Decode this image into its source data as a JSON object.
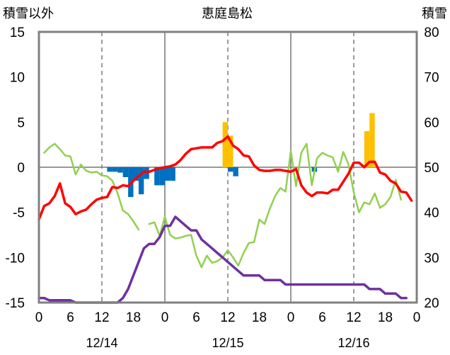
{
  "chart_data": {
    "type": "line",
    "title": "恵庭島松",
    "left_axis_label": "積雪以外",
    "right_axis_label": "積雪",
    "left_ylim": [
      -15,
      15
    ],
    "left_ticks": [
      "15",
      "10",
      "5",
      "0",
      "-5",
      "-10",
      "-15"
    ],
    "right_ylim": [
      20,
      80
    ],
    "right_ticks": [
      "80",
      "70",
      "60",
      "50",
      "40",
      "30",
      "20"
    ],
    "x_range_hours": [
      0,
      72
    ],
    "x_tick_labels": [
      "0",
      "6",
      "12",
      "18",
      "0",
      "6",
      "12",
      "18",
      "0",
      "6",
      "12",
      "18",
      "0"
    ],
    "date_labels": [
      "12/14",
      "12/15",
      "12/16"
    ],
    "grid": "dashed vertical every 12h, solid vertical at day boundaries, zero line",
    "colors": {
      "temperature": "#ff0000",
      "dew_point": "#92d050",
      "snow_depth": "#7030a0",
      "snowfall": "#ffc000",
      "snow_decrease": "#0070c0"
    },
    "series": [
      {
        "axis": "left",
        "style": "line",
        "color_key": "temperature",
        "points": [
          [
            0,
            -5.8
          ],
          [
            1,
            -4.3
          ],
          [
            2,
            -4.0
          ],
          [
            3,
            -3.2
          ],
          [
            4,
            -1.8
          ],
          [
            5,
            -4.0
          ],
          [
            6,
            -4.4
          ],
          [
            7,
            -5.2
          ],
          [
            8,
            -4.9
          ],
          [
            9,
            -4.7
          ],
          [
            10,
            -4.1
          ],
          [
            11,
            -3.6
          ],
          [
            12,
            -3.4
          ],
          [
            13,
            -3.3
          ],
          [
            14,
            -2.2
          ],
          [
            15,
            -2.3
          ],
          [
            16,
            -2.0
          ],
          [
            17,
            -2.1
          ],
          [
            18,
            -1.5
          ],
          [
            19,
            -1.0
          ],
          [
            20,
            -0.5
          ],
          [
            21,
            -0.5
          ],
          [
            22,
            -0.3
          ],
          [
            23,
            -0.1
          ],
          [
            24,
            0.0
          ],
          [
            25,
            0.1
          ],
          [
            26,
            0.3
          ],
          [
            27,
            0.8
          ],
          [
            28,
            1.5
          ],
          [
            29,
            2.0
          ],
          [
            30,
            2.1
          ],
          [
            31,
            2.2
          ],
          [
            32,
            2.2
          ],
          [
            33,
            2.2
          ],
          [
            34,
            2.7
          ],
          [
            35,
            2.9
          ],
          [
            36,
            3.4
          ],
          [
            37,
            2.4
          ],
          [
            38,
            2.0
          ],
          [
            39,
            1.3
          ],
          [
            40,
            1.2
          ],
          [
            41,
            0.2
          ],
          [
            42,
            -0.3
          ],
          [
            43,
            -0.4
          ],
          [
            44,
            -0.4
          ],
          [
            45,
            -0.3
          ],
          [
            46,
            -0.3
          ],
          [
            47,
            -0.4
          ],
          [
            48,
            -0.5
          ],
          [
            49,
            -0.2
          ],
          [
            50,
            -2.0
          ],
          [
            51,
            -2.8
          ],
          [
            52,
            -3.2
          ],
          [
            53,
            -2.8
          ],
          [
            54,
            -2.8
          ],
          [
            55,
            -2.9
          ],
          [
            56,
            -2.5
          ],
          [
            57,
            -2.5
          ],
          [
            58,
            -1.6
          ],
          [
            59,
            -0.7
          ],
          [
            60,
            0.5
          ],
          [
            61,
            0.5
          ],
          [
            62,
            0.0
          ],
          [
            63,
            0.6
          ],
          [
            64,
            0.6
          ],
          [
            65,
            -0.6
          ],
          [
            66,
            -0.8
          ],
          [
            67,
            -1.5
          ],
          [
            68,
            -1.8
          ],
          [
            69,
            -2.7
          ],
          [
            70,
            -2.8
          ],
          [
            71,
            -3.7
          ]
        ]
      },
      {
        "axis": "left",
        "style": "line",
        "color_key": "dew_point",
        "points": [
          [
            1,
            1.6
          ],
          [
            2,
            2.2
          ],
          [
            3,
            2.6
          ],
          [
            4,
            2.0
          ],
          [
            5,
            1.3
          ],
          [
            6,
            1.2
          ],
          [
            7,
            -0.8
          ],
          [
            8,
            0.3
          ],
          [
            9,
            -0.4
          ],
          [
            10,
            -0.6
          ],
          [
            11,
            -0.5
          ],
          [
            12,
            -0.9
          ],
          [
            13,
            -1.0
          ],
          [
            14,
            -1.5
          ],
          [
            15,
            -2.9
          ],
          [
            16,
            -4.8
          ],
          [
            17,
            -5.2
          ],
          [
            18,
            -6.0
          ],
          [
            19,
            -6.9
          ],
          [
            null,
            null
          ],
          [
            21,
            -6.3
          ],
          [
            22,
            -6.1
          ],
          [
            23,
            -7.6
          ],
          [
            24,
            -5.5
          ],
          [
            25,
            -7.5
          ],
          [
            26,
            -7.9
          ],
          [
            27,
            -7.8
          ],
          [
            28,
            -7.6
          ],
          [
            29,
            -7.5
          ],
          [
            30,
            -9.8
          ],
          [
            31,
            -11.1
          ],
          [
            32,
            -9.8
          ],
          [
            33,
            -10.6
          ],
          [
            34,
            -10.4
          ],
          [
            35,
            -10.0
          ],
          [
            36,
            -9.2
          ],
          [
            37,
            -10.0
          ],
          [
            38,
            -10.9
          ],
          [
            39,
            -9.5
          ],
          [
            40,
            -8.4
          ],
          [
            41,
            -8.3
          ],
          [
            42,
            -5.8
          ],
          [
            43,
            -6.3
          ],
          [
            44,
            -4.6
          ],
          [
            45,
            -3.2
          ],
          [
            46,
            -2.3
          ],
          [
            47,
            -2.7
          ],
          [
            48,
            1.8
          ],
          [
            49,
            -2.1
          ],
          [
            50,
            1.6
          ],
          [
            51,
            2.6
          ],
          [
            52,
            -2.0
          ],
          [
            53,
            1.0
          ],
          [
            54,
            1.6
          ],
          [
            55,
            1.3
          ],
          [
            56,
            1.1
          ],
          [
            57,
            -0.5
          ],
          [
            58,
            1.7
          ],
          [
            59,
            0.3
          ],
          [
            60,
            -2.8
          ],
          [
            61,
            -5.0
          ],
          [
            62,
            -3.9
          ],
          [
            63,
            -4.1
          ],
          [
            64,
            -2.9
          ],
          [
            65,
            -4.5
          ],
          [
            66,
            -4.1
          ],
          [
            67,
            -3.3
          ],
          [
            68,
            -1.4
          ],
          [
            69,
            -3.6
          ]
        ]
      },
      {
        "axis": "right",
        "style": "line",
        "color_key": "snow_depth",
        "points": [
          [
            0,
            21
          ],
          [
            1,
            21
          ],
          [
            2,
            20.5
          ],
          [
            3,
            20.5
          ],
          [
            4,
            20.5
          ],
          [
            5,
            20.5
          ],
          [
            6,
            20.5
          ],
          [
            7,
            20
          ],
          [
            8,
            20
          ],
          [
            9,
            20
          ],
          [
            10,
            20
          ],
          [
            11,
            20
          ],
          [
            12,
            20
          ],
          [
            13,
            20
          ],
          [
            14,
            20
          ],
          [
            15,
            20
          ],
          [
            16,
            21
          ],
          [
            17,
            23
          ],
          [
            18,
            26
          ],
          [
            19,
            29
          ],
          [
            20,
            32
          ],
          [
            21,
            33
          ],
          [
            22,
            33
          ],
          [
            23,
            34.5
          ],
          [
            24,
            37
          ],
          [
            25,
            37
          ],
          [
            26,
            39
          ],
          [
            27,
            38
          ],
          [
            28,
            37
          ],
          [
            29,
            36
          ],
          [
            30,
            36
          ],
          [
            31,
            34
          ],
          [
            32,
            33
          ],
          [
            33,
            32
          ],
          [
            34,
            31
          ],
          [
            35,
            30
          ],
          [
            36,
            29
          ],
          [
            37,
            28
          ],
          [
            38,
            27
          ],
          [
            39,
            26
          ],
          [
            40,
            26
          ],
          [
            41,
            26
          ],
          [
            42,
            26
          ],
          [
            43,
            25
          ],
          [
            44,
            25
          ],
          [
            45,
            25
          ],
          [
            46,
            25
          ],
          [
            47,
            24
          ],
          [
            48,
            24
          ],
          [
            49,
            24
          ],
          [
            50,
            24
          ],
          [
            51,
            24
          ],
          [
            52,
            24
          ],
          [
            53,
            24
          ],
          [
            54,
            24
          ],
          [
            55,
            24
          ],
          [
            56,
            24
          ],
          [
            57,
            24
          ],
          [
            58,
            24
          ],
          [
            59,
            24
          ],
          [
            60,
            24
          ],
          [
            61,
            24
          ],
          [
            62,
            24
          ],
          [
            63,
            23
          ],
          [
            64,
            23
          ],
          [
            65,
            23
          ],
          [
            66,
            22
          ],
          [
            67,
            22
          ],
          [
            68,
            22
          ],
          [
            69,
            21
          ],
          [
            70,
            21
          ]
        ]
      },
      {
        "axis": "left",
        "style": "bar",
        "color_key": "snowfall",
        "bars": [
          [
            36,
            5.0
          ],
          [
            37,
            3.5
          ],
          [
            63,
            4.0
          ],
          [
            64,
            6.0
          ]
        ]
      },
      {
        "axis": "left",
        "style": "bar",
        "color_key": "snow_decrease",
        "bars": [
          [
            14,
            -0.5
          ],
          [
            15,
            -0.5
          ],
          [
            16,
            -0.6
          ],
          [
            17,
            -1.1
          ],
          [
            18,
            -3.3
          ],
          [
            19,
            -1.5
          ],
          [
            20,
            -3.0
          ],
          [
            21,
            -1.3
          ],
          [
            23,
            -2.0
          ],
          [
            24,
            -2.0
          ],
          [
            25,
            -1.5
          ],
          [
            26,
            -1.5
          ],
          [
            37,
            -0.5
          ],
          [
            38,
            -1.0
          ],
          [
            53,
            -0.5
          ]
        ]
      }
    ]
  }
}
